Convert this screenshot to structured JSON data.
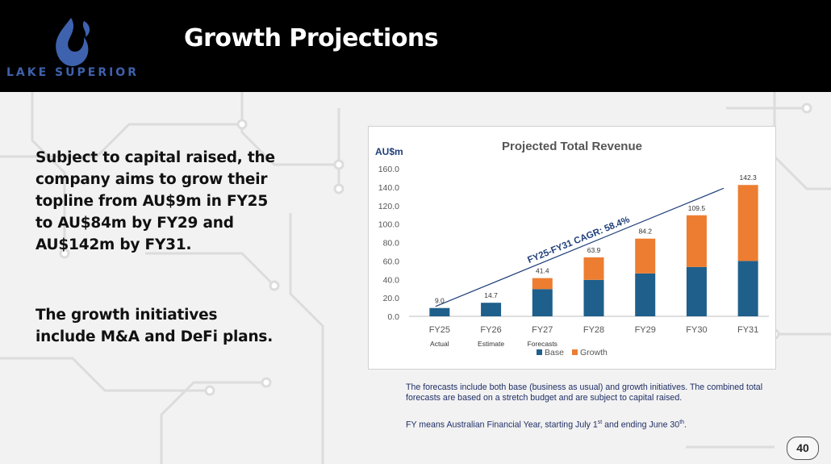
{
  "brand": {
    "name": "LAKE SUPERIOR",
    "logo_icon": "flame-drop-icon",
    "accent_color": "#3e62ad"
  },
  "slide": {
    "title": "Growth Projections",
    "lead_text": "Subject to capital raised, the company aims to grow their topline from AU$9m in FY25 to AU$84m by FY29 and AU$142m by FY31.",
    "lead_text_2": "The growth initiatives include M&A and DeFi plans.",
    "note_1": "The forecasts include both base (business as usual) and growth initiatives. The combined total forecasts are based on a stretch budget and are subject to capital raised.",
    "note_2_before_st": "FY means Australian Financial Year, starting July 1",
    "note_2_st": "st",
    "note_2_mid": " and ending June 30",
    "note_2_th": "th",
    "note_2_end": ".",
    "page_number": "40"
  },
  "chart_data": {
    "type": "bar",
    "stacked": true,
    "title": "Projected Total Revenue",
    "ylabel": "AU$m",
    "xlabel": "",
    "ylim": [
      0,
      160
    ],
    "yticks": [
      "0.0",
      "20.0",
      "40.0",
      "60.0",
      "80.0",
      "100.0",
      "120.0",
      "140.0",
      "160.0"
    ],
    "categories": [
      "FY25",
      "FY26",
      "FY27",
      "FY28",
      "FY29",
      "FY30",
      "FY31"
    ],
    "sublabels": [
      "Actual",
      "Estimate",
      "Forecasts",
      "",
      "",
      "",
      ""
    ],
    "series": [
      {
        "name": "Base",
        "color": "#1f5f8b",
        "values": [
          9.0,
          14.7,
          29.5,
          39.5,
          46.5,
          53.5,
          60.0
        ]
      },
      {
        "name": "Growth",
        "color": "#ed7d31",
        "values": [
          0,
          0,
          11.9,
          24.4,
          37.7,
          56.0,
          82.3
        ]
      }
    ],
    "totals": [
      "9.0",
      "14.7",
      "41.4",
      "63.9",
      "84.2",
      "109.5",
      "142.3"
    ],
    "annotation": "FY25-FY31 CAGR: 58.4%",
    "trend_color": "#1f3f7a",
    "grid": false,
    "legend": "bottom"
  }
}
